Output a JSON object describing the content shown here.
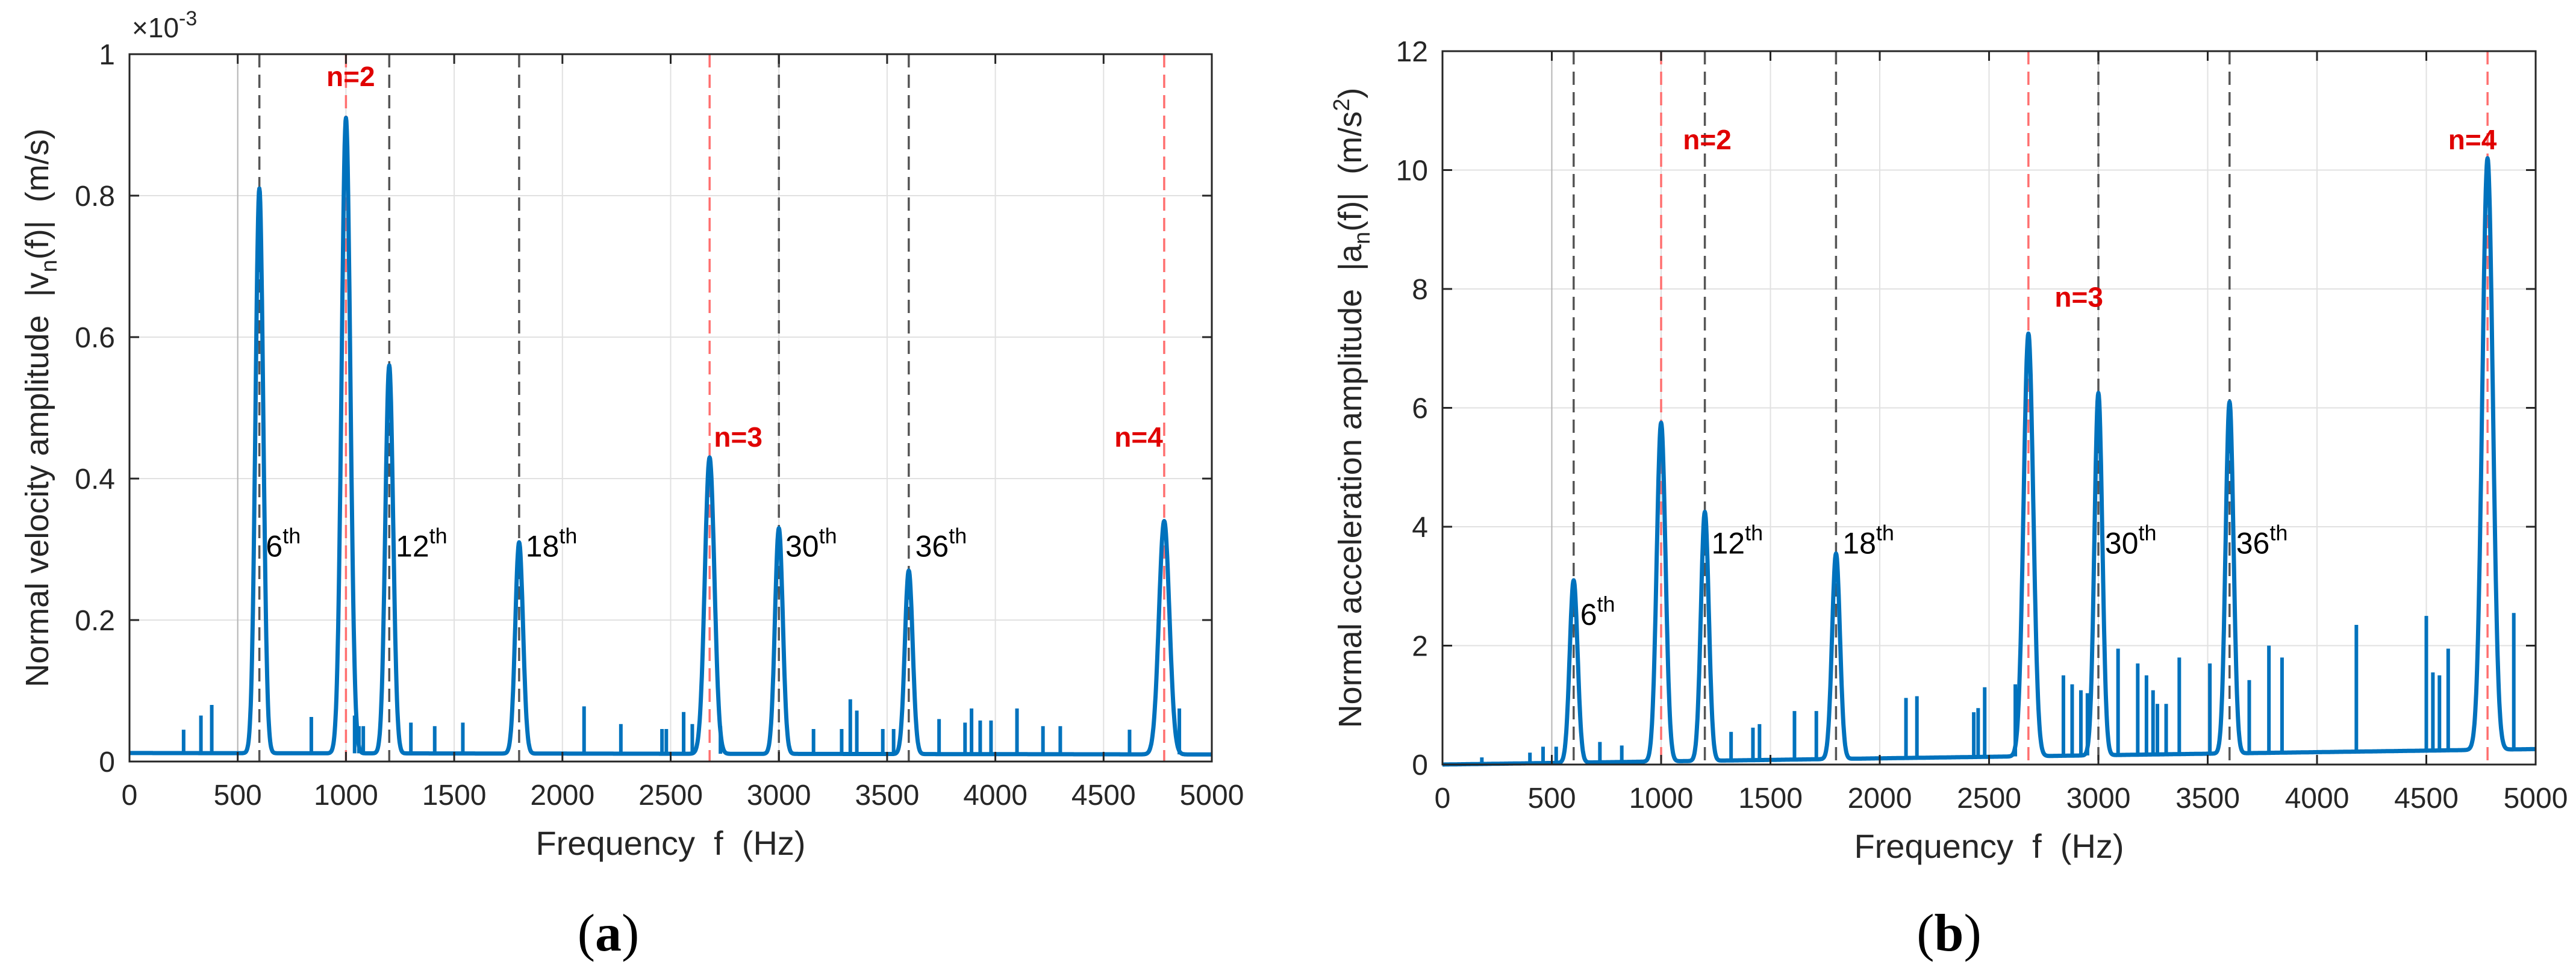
{
  "colors": {
    "spectrum": "#0072BD",
    "ref_black": "#555555",
    "ref_red": "#FF6F6F",
    "label_red": "#E00000",
    "grid": "#E1E1E1",
    "axis": "#262626",
    "tick_text": "#262626"
  },
  "panels": [
    {
      "caption": {
        "open": "(",
        "letter": "a",
        "close": ")"
      },
      "chart_data": {
        "type": "line",
        "title": "",
        "xlabel": "Frequency  f  (Hz)",
        "ylabel": {
          "prefix": "Normal velocity amplitude  |v",
          "sub": "n",
          "suffix": "(f)|  (m/s)"
        },
        "axis_multiplier": {
          "base": "×10",
          "exp": "-3"
        },
        "xlim": [
          0,
          5000
        ],
        "ylim": [
          0,
          1
        ],
        "xticks": [
          0,
          500,
          1000,
          1500,
          2000,
          2500,
          3000,
          3500,
          4000,
          4500,
          5000
        ],
        "xtick_labels": [
          "0",
          "500",
          "1000",
          "1500",
          "2000",
          "2500",
          "3000",
          "3500",
          "4000",
          "4500",
          "5000"
        ],
        "yticks": [
          0,
          0.2,
          0.4,
          0.6,
          0.8,
          1
        ],
        "ytick_labels": [
          "0",
          "0.2",
          "0.4",
          "0.6",
          "0.8",
          "1"
        ],
        "grid": true,
        "baseline": {
          "start": 0.012,
          "end": 0.01
        },
        "peaks": [
          {
            "f": 600,
            "a": 0.81,
            "w": 18
          },
          {
            "f": 1000,
            "a": 0.91,
            "w": 20
          },
          {
            "f": 1200,
            "a": 0.56,
            "w": 18
          },
          {
            "f": 1800,
            "a": 0.31,
            "w": 18
          },
          {
            "f": 2680,
            "a": 0.43,
            "w": 22
          },
          {
            "f": 3000,
            "a": 0.33,
            "w": 18
          },
          {
            "f": 3600,
            "a": 0.27,
            "w": 18
          },
          {
            "f": 4780,
            "a": 0.34,
            "w": 24
          }
        ],
        "spikes": [
          [
            250,
            0.045
          ],
          [
            330,
            0.065
          ],
          [
            380,
            0.08
          ],
          [
            840,
            0.063
          ],
          [
            1040,
            0.065
          ],
          [
            1060,
            0.05
          ],
          [
            1080,
            0.05
          ],
          [
            1300,
            0.055
          ],
          [
            1410,
            0.05
          ],
          [
            1540,
            0.055
          ],
          [
            2100,
            0.078
          ],
          [
            2270,
            0.053
          ],
          [
            2460,
            0.046
          ],
          [
            2480,
            0.046
          ],
          [
            2560,
            0.07
          ],
          [
            2600,
            0.053
          ],
          [
            2730,
            0.05
          ],
          [
            3160,
            0.046
          ],
          [
            3290,
            0.046
          ],
          [
            3330,
            0.088
          ],
          [
            3360,
            0.072
          ],
          [
            3480,
            0.046
          ],
          [
            3530,
            0.046
          ],
          [
            3740,
            0.06
          ],
          [
            3860,
            0.055
          ],
          [
            3890,
            0.075
          ],
          [
            3930,
            0.058
          ],
          [
            3980,
            0.058
          ],
          [
            4100,
            0.075
          ],
          [
            4220,
            0.05
          ],
          [
            4300,
            0.05
          ],
          [
            4620,
            0.045
          ],
          [
            4850,
            0.075
          ]
        ],
        "ref_lines": [
          {
            "f": 500,
            "kind": "thin"
          },
          {
            "f": 600,
            "kind": "black"
          },
          {
            "f": 1000,
            "kind": "red"
          },
          {
            "f": 1200,
            "kind": "black"
          },
          {
            "f": 1800,
            "kind": "black"
          },
          {
            "f": 2680,
            "kind": "red"
          },
          {
            "f": 3000,
            "kind": "black"
          },
          {
            "f": 3600,
            "kind": "black"
          },
          {
            "f": 4780,
            "kind": "red"
          }
        ],
        "harmonic_labels": [
          {
            "num": "6",
            "sup": "th",
            "f": 630,
            "y": 0.29
          },
          {
            "num": "12",
            "sup": "th",
            "f": 1230,
            "y": 0.29
          },
          {
            "num": "18",
            "sup": "th",
            "f": 1830,
            "y": 0.29
          },
          {
            "num": "30",
            "sup": "th",
            "f": 3030,
            "y": 0.29
          },
          {
            "num": "36",
            "sup": "th",
            "f": 3630,
            "y": 0.29
          }
        ],
        "mode_labels": [
          {
            "text": "n=2",
            "f": 910,
            "y": 0.955
          },
          {
            "text": "n=3",
            "f": 2700,
            "y": 0.445
          },
          {
            "text": "n=4",
            "f": 4550,
            "y": 0.445
          }
        ]
      }
    },
    {
      "caption": {
        "open": "(",
        "letter": "b",
        "close": ")"
      },
      "chart_data": {
        "type": "line",
        "title": "",
        "xlabel": "Frequency  f  (Hz)",
        "ylabel": {
          "prefix": "Normal acceleration amplitude  |a",
          "sub": "n",
          "suffix": "(f)|  (m/s",
          "sup": "2",
          "tail": ")"
        },
        "xlim": [
          0,
          5000
        ],
        "ylim": [
          0,
          12
        ],
        "xticks": [
          0,
          500,
          1000,
          1500,
          2000,
          2500,
          3000,
          3500,
          4000,
          4500,
          5000
        ],
        "xtick_labels": [
          "0",
          "500",
          "1000",
          "1500",
          "2000",
          "2500",
          "3000",
          "3500",
          "4000",
          "4500",
          "5000"
        ],
        "yticks": [
          0,
          2,
          4,
          6,
          8,
          10,
          12
        ],
        "ytick_labels": [
          "0",
          "2",
          "4",
          "6",
          "8",
          "10",
          "12"
        ],
        "grid": true,
        "baseline": {
          "start": 0.0,
          "end": 0.26
        },
        "peaks": [
          {
            "f": 600,
            "a": 3.1,
            "w": 18
          },
          {
            "f": 1000,
            "a": 5.75,
            "w": 20
          },
          {
            "f": 1200,
            "a": 4.25,
            "w": 18
          },
          {
            "f": 1800,
            "a": 3.55,
            "w": 18
          },
          {
            "f": 2680,
            "a": 7.25,
            "w": 22
          },
          {
            "f": 3000,
            "a": 6.25,
            "w": 18
          },
          {
            "f": 3600,
            "a": 6.1,
            "w": 18
          },
          {
            "f": 4780,
            "a": 10.2,
            "w": 24
          }
        ],
        "spikes": [
          [
            180,
            0.12
          ],
          [
            400,
            0.2
          ],
          [
            460,
            0.3
          ],
          [
            520,
            0.3
          ],
          [
            720,
            0.38
          ],
          [
            820,
            0.32
          ],
          [
            1320,
            0.55
          ],
          [
            1420,
            0.62
          ],
          [
            1450,
            0.68
          ],
          [
            1610,
            0.9
          ],
          [
            1710,
            0.9
          ],
          [
            2120,
            1.12
          ],
          [
            2170,
            1.15
          ],
          [
            2430,
            0.88
          ],
          [
            2450,
            0.95
          ],
          [
            2480,
            1.3
          ],
          [
            2620,
            1.35
          ],
          [
            2840,
            1.5
          ],
          [
            2880,
            1.35
          ],
          [
            2920,
            1.25
          ],
          [
            2950,
            1.2
          ],
          [
            3090,
            1.95
          ],
          [
            3180,
            1.7
          ],
          [
            3220,
            1.5
          ],
          [
            3250,
            1.25
          ],
          [
            3270,
            1.02
          ],
          [
            3310,
            1.02
          ],
          [
            3370,
            1.8
          ],
          [
            3510,
            1.7
          ],
          [
            3690,
            1.42
          ],
          [
            3780,
            2.0
          ],
          [
            3840,
            1.8
          ],
          [
            4180,
            2.35
          ],
          [
            4500,
            2.5
          ],
          [
            4530,
            1.55
          ],
          [
            4560,
            1.5
          ],
          [
            4600,
            1.95
          ],
          [
            4900,
            2.55
          ]
        ],
        "ref_lines": [
          {
            "f": 500,
            "kind": "thin"
          },
          {
            "f": 600,
            "kind": "black"
          },
          {
            "f": 1000,
            "kind": "red"
          },
          {
            "f": 1200,
            "kind": "black"
          },
          {
            "f": 1800,
            "kind": "black"
          },
          {
            "f": 2680,
            "kind": "red"
          },
          {
            "f": 3000,
            "kind": "black"
          },
          {
            "f": 3600,
            "kind": "black"
          },
          {
            "f": 4780,
            "kind": "red"
          }
        ],
        "harmonic_labels": [
          {
            "num": "6",
            "sup": "th",
            "f": 630,
            "y": 2.35
          },
          {
            "num": "12",
            "sup": "th",
            "f": 1230,
            "y": 3.55
          },
          {
            "num": "18",
            "sup": "th",
            "f": 1830,
            "y": 3.55
          },
          {
            "num": "30",
            "sup": "th",
            "f": 3030,
            "y": 3.55
          },
          {
            "num": "36",
            "sup": "th",
            "f": 3630,
            "y": 3.55
          }
        ],
        "mode_labels": [
          {
            "text": "n=2",
            "f": 1100,
            "y": 10.35
          },
          {
            "text": "n=3",
            "f": 2800,
            "y": 7.7
          },
          {
            "text": "n=4",
            "f": 4600,
            "y": 10.35
          }
        ]
      }
    }
  ]
}
